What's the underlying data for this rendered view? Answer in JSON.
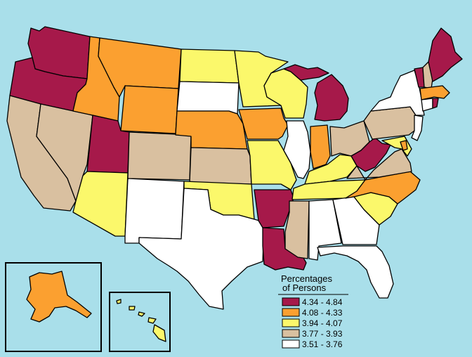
{
  "colors": {
    "water": "#a9dfea",
    "c1": "#a6194a",
    "c2": "#fba030",
    "c3": "#fbf86b",
    "c4": "#d9c0a0",
    "c5": "#ffffff"
  },
  "legend": {
    "title_line1": "Percentages",
    "title_line2": "of Persons",
    "items": [
      {
        "range": "4.34 - 4.84",
        "color": "#a6194a"
      },
      {
        "range": "4.08 - 4.33",
        "color": "#fba030"
      },
      {
        "range": "3.94 - 4.07",
        "color": "#fbf86b"
      },
      {
        "range": "3.77 - 3.93",
        "color": "#d9c0a0"
      },
      {
        "range": "3.51 - 3.76",
        "color": "#ffffff"
      }
    ]
  }
}
